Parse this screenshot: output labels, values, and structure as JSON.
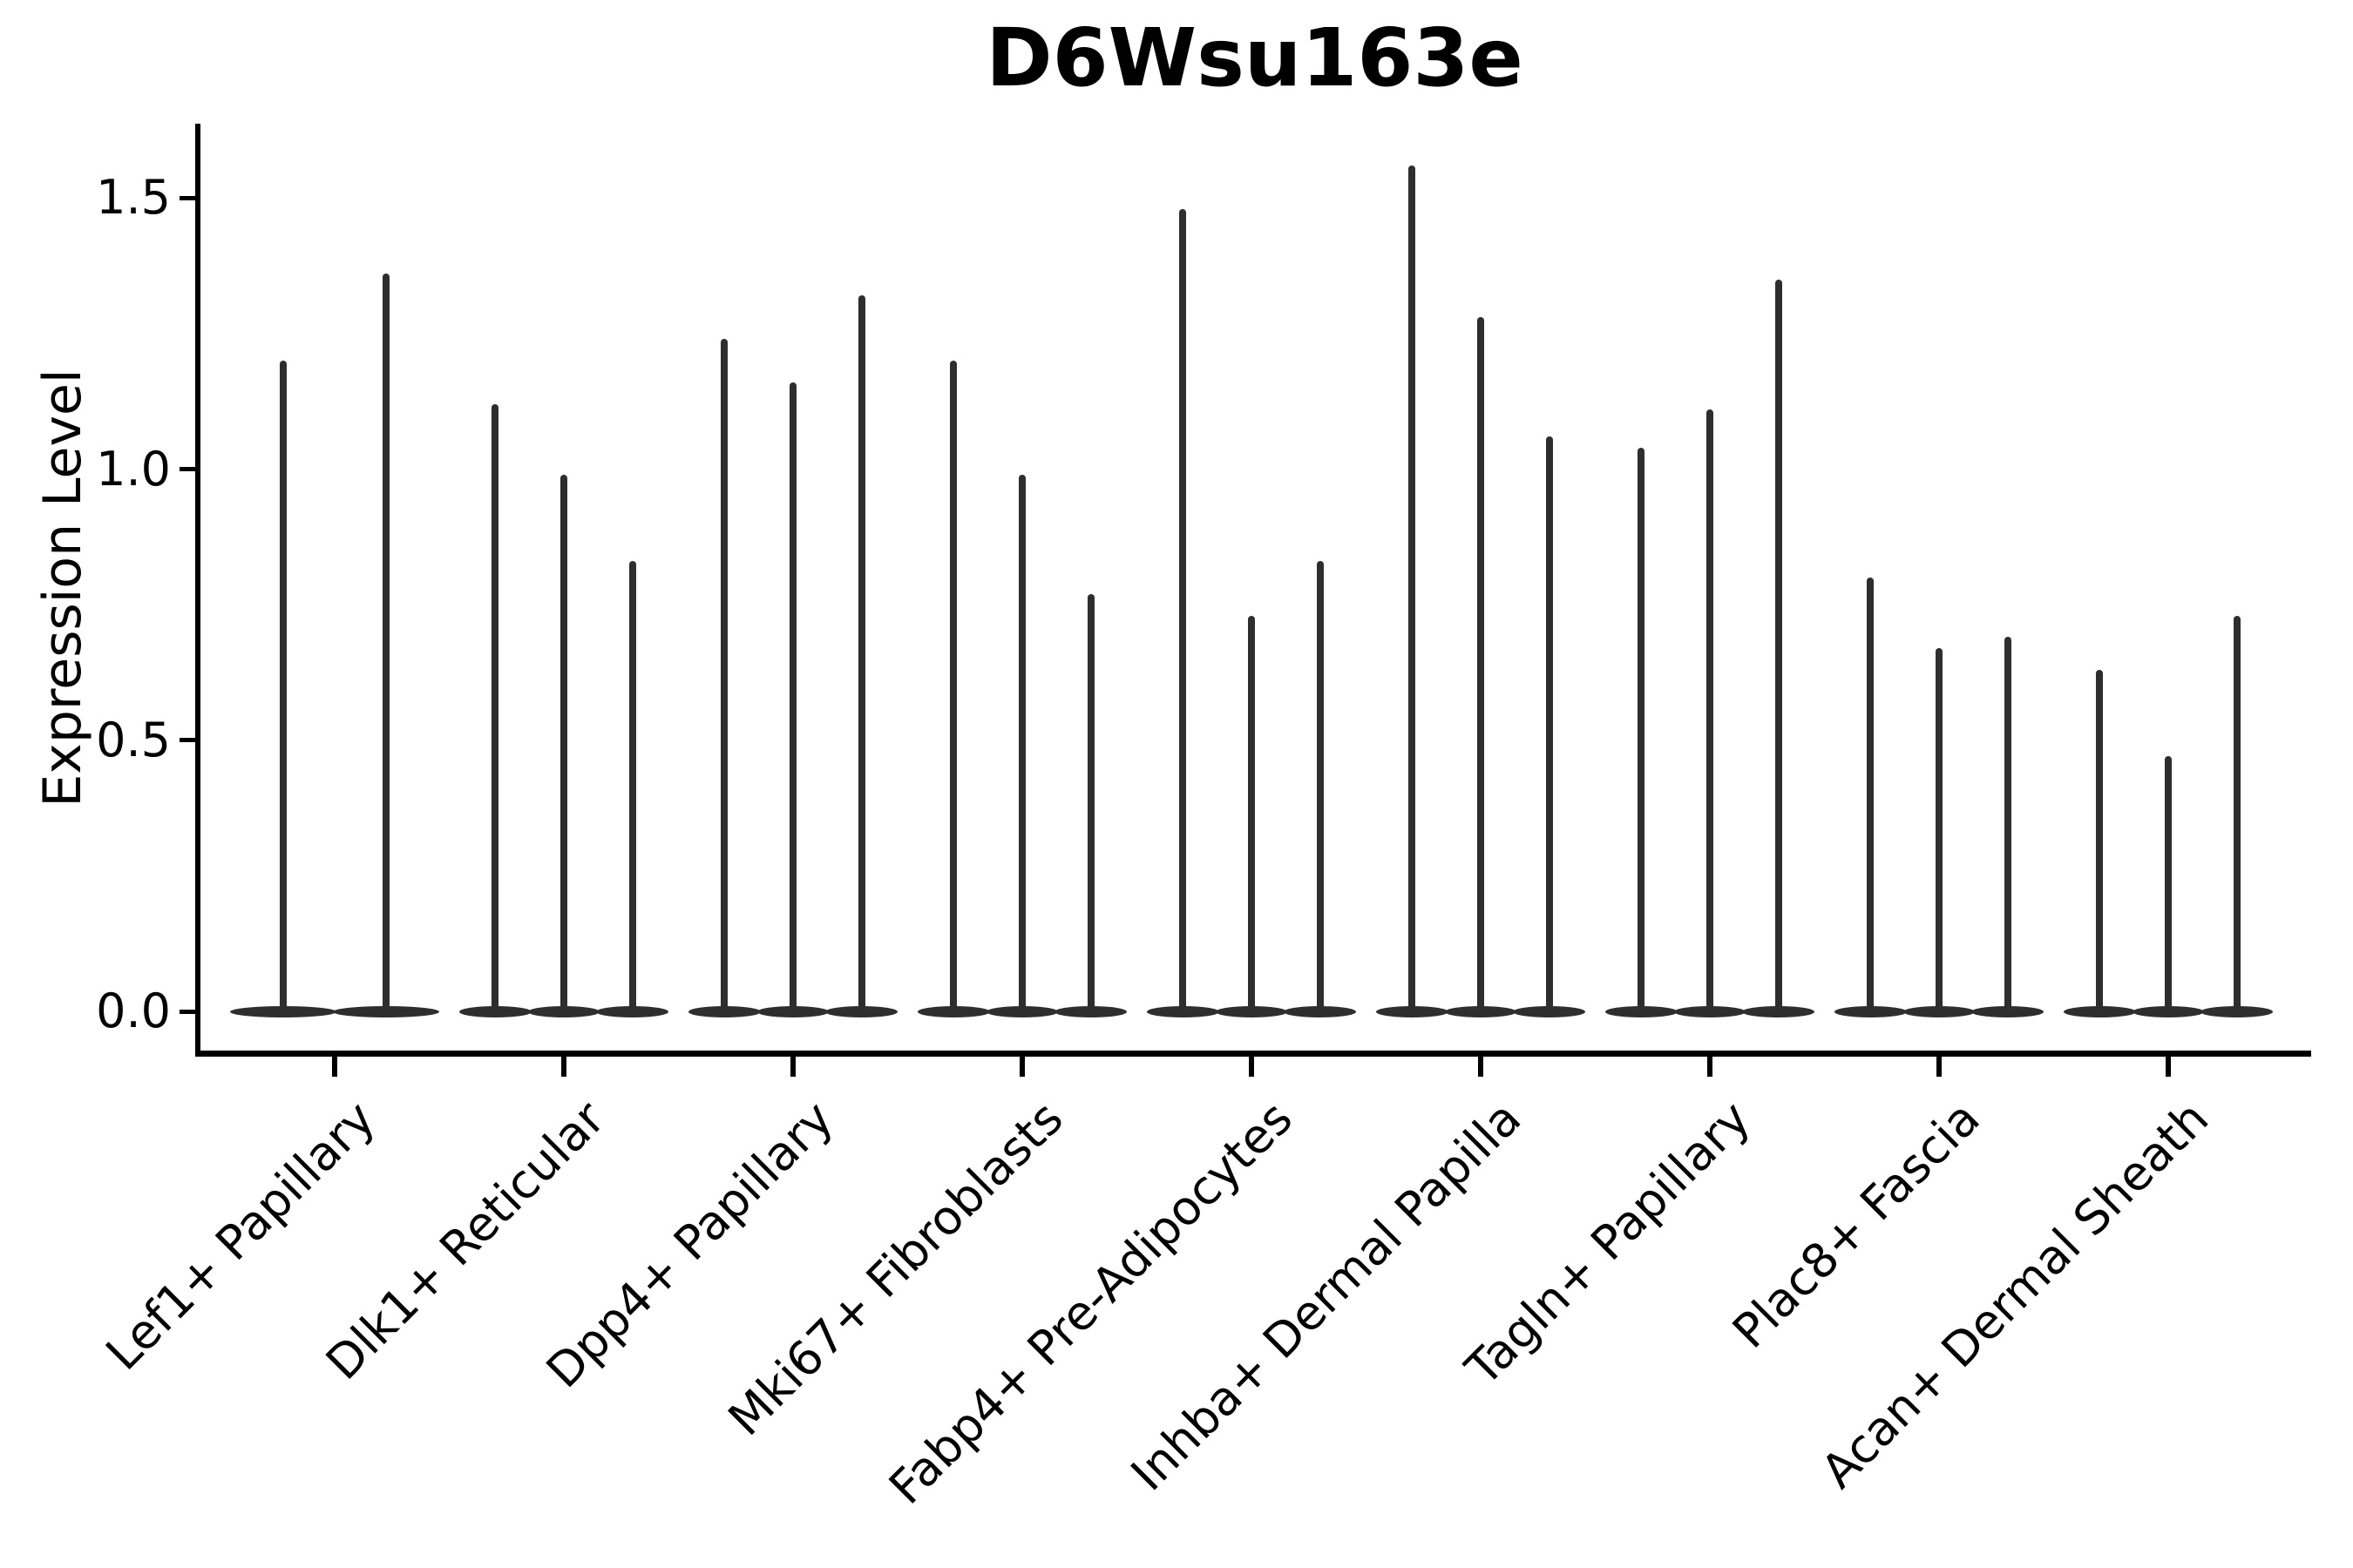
{
  "chart_data": {
    "type": "violin",
    "title": "D6Wsu163e",
    "xlabel": "",
    "ylabel": "Expression Level",
    "ylim": [
      -0.08,
      1.63
    ],
    "yticks": [
      0.0,
      0.5,
      1.0,
      1.5
    ],
    "ytick_labels": [
      "0.0",
      "0.5",
      "1.0",
      "1.5"
    ],
    "grid": false,
    "legend_position": "none",
    "violin_color": "#2e2e2e",
    "axis_color": "#000000",
    "categories": [
      "Lef1+ Papillary",
      "Dlk1+ Reticular",
      "Dpp4+ Papillary",
      "Mki67+ Fibroblasts",
      "Fabp4+ Pre-Adipocytes",
      "Inhba+ Dermal Papilla",
      "Tagln+ Papillary",
      "Plac8+ Fascia",
      "Acan+ Dermal Sheath"
    ],
    "series": [
      {
        "category": "Lef1+ Papillary",
        "violin_peaks": [
          1.2,
          1.36
        ]
      },
      {
        "category": "Dlk1+ Reticular",
        "violin_peaks": [
          1.12,
          0.99,
          0.83
        ]
      },
      {
        "category": "Dpp4+ Papillary",
        "violin_peaks": [
          1.24,
          1.16,
          1.32
        ]
      },
      {
        "category": "Mki67+ Fibroblasts",
        "violin_peaks": [
          1.2,
          0.99,
          0.77
        ]
      },
      {
        "category": "Fabp4+ Pre-Adipocytes",
        "violin_peaks": [
          1.48,
          0.73,
          0.83
        ]
      },
      {
        "category": "Inhba+ Dermal Papilla",
        "violin_peaks": [
          1.56,
          1.28,
          1.06
        ]
      },
      {
        "category": "Tagln+ Papillary",
        "violin_peaks": [
          1.04,
          1.11,
          1.35
        ]
      },
      {
        "category": "Plac8+ Fascia",
        "violin_peaks": [
          0.8,
          0.67,
          0.69
        ]
      },
      {
        "category": "Acan+ Dermal Sheath",
        "violin_peaks": [
          0.63,
          0.47,
          0.73
        ]
      }
    ],
    "baseline_value": 0.0
  }
}
